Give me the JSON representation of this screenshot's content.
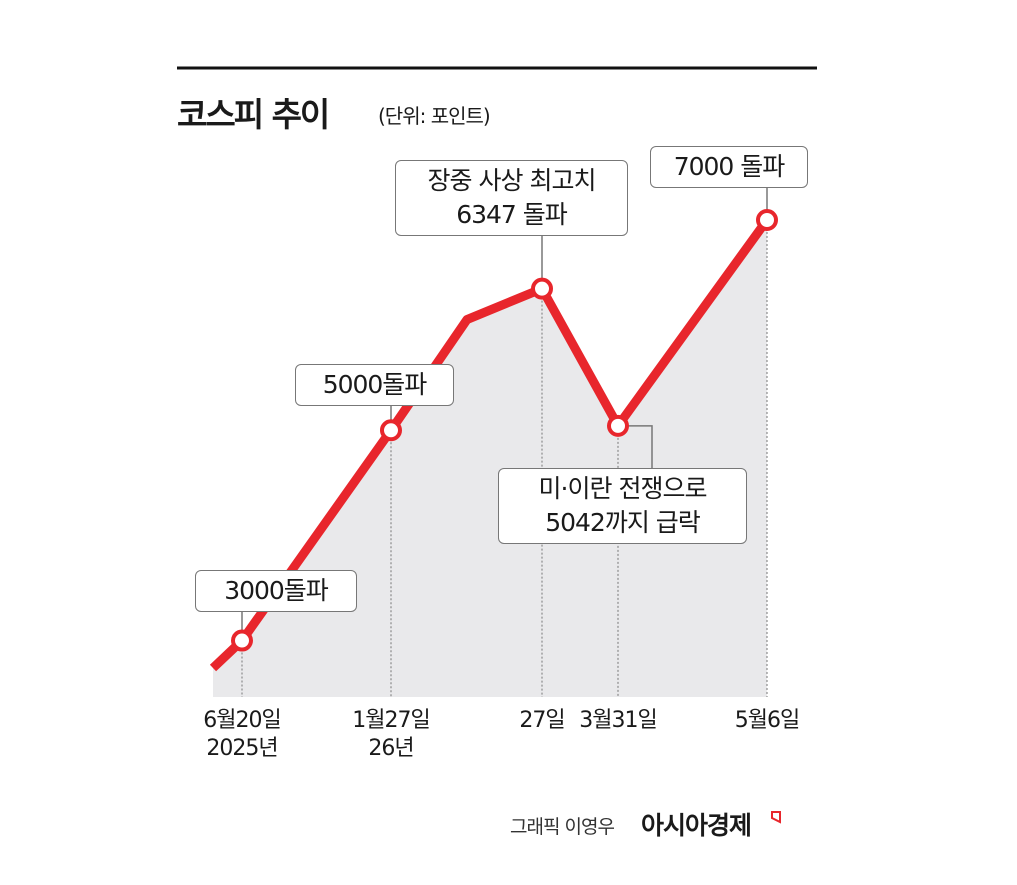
{
  "chart_data": {
    "type": "line",
    "title": "코스피 추이",
    "subtitle": "(단위: 포인트)",
    "categories": [
      null,
      "6월20일\n2025년",
      "1월27일\n26년",
      null,
      "27일",
      "3월31일",
      "5월6일"
    ],
    "values": [
      2739,
      3000,
      5000,
      6053,
      6347,
      5042,
      7000
    ],
    "color": "#e8262c",
    "area_color": "#e9e9eb",
    "annotations": [
      {
        "index": 1,
        "text": "3000돌파"
      },
      {
        "index": 2,
        "text": "5000돌파"
      },
      {
        "index": 4,
        "text": "장중 사상 최고치\n6347 돌파"
      },
      {
        "index": 5,
        "text": "미·이란 전쟁으로\n5042까지 급락"
      },
      {
        "index": 6,
        "text": "7000 돌파"
      }
    ],
    "credit": "그래픽 이영우",
    "source": "아시아경제"
  }
}
